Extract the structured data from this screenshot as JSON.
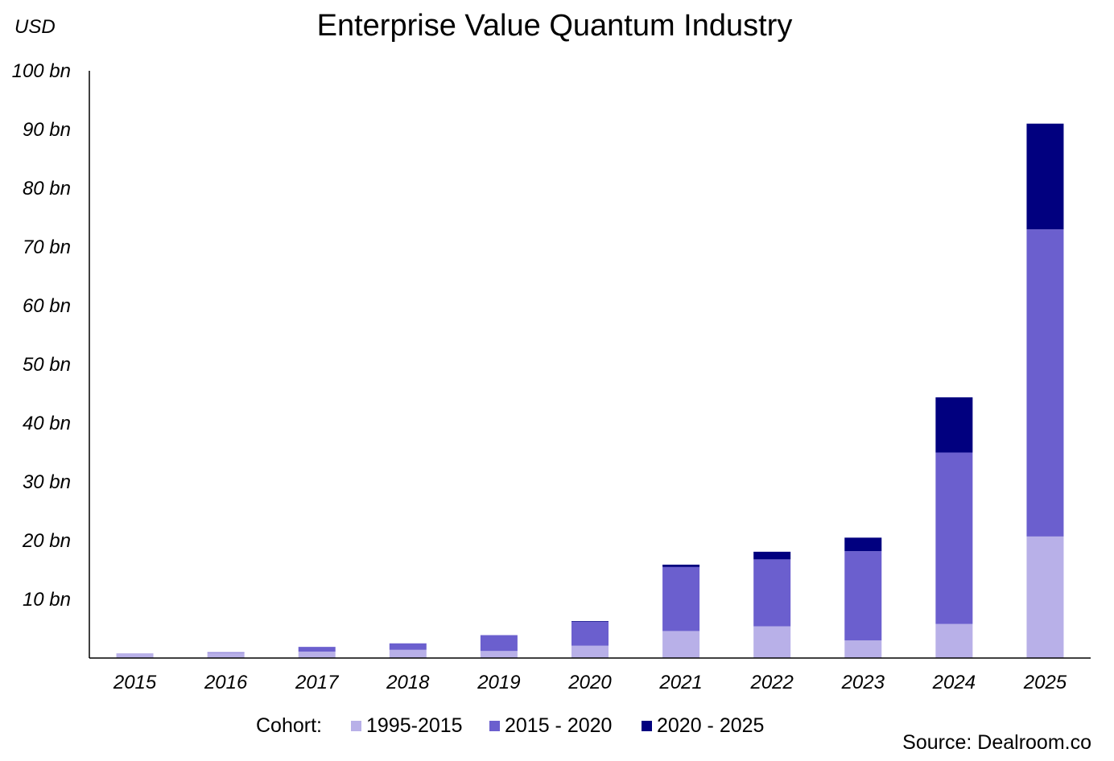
{
  "chart_data": {
    "type": "bar",
    "stacked": true,
    "title": "Enterprise Value Quantum Industry",
    "unit_label": "USD",
    "xlabel": "",
    "ylabel": "USD",
    "ylim": [
      0,
      100
    ],
    "yticks": [
      "100 bn",
      "90 bn",
      "80 bn",
      "70 bn",
      "60 bn",
      "50 bn",
      "40 bn",
      "30 bn",
      "20 bn",
      "10 bn"
    ],
    "ytick_values": [
      100,
      90,
      80,
      70,
      60,
      50,
      40,
      30,
      20,
      10
    ],
    "categories": [
      "2015",
      "2016",
      "2017",
      "2018",
      "2019",
      "2020",
      "2021",
      "2022",
      "2023",
      "2024",
      "2025"
    ],
    "legend_title": "Cohort:",
    "legend_position": "bottom",
    "series": [
      {
        "name": "1995-2015",
        "color": "#b8b0e8",
        "values": [
          0.8,
          0.9,
          1.1,
          1.4,
          1.2,
          2.1,
          4.6,
          5.4,
          3.0,
          5.8,
          20.7
        ]
      },
      {
        "name": "2015 - 2020",
        "color": "#6b5fce",
        "values": [
          0.0,
          0.1,
          0.8,
          1.1,
          2.7,
          4.1,
          10.9,
          11.4,
          15.2,
          29.2,
          52.3
        ]
      },
      {
        "name": "2020 - 2025",
        "color": "#01007f",
        "values": [
          0.0,
          0.0,
          0.0,
          0.0,
          0.0,
          0.1,
          0.4,
          1.3,
          2.3,
          9.4,
          18.0
        ]
      }
    ],
    "source": "Source: Dealroom.co"
  }
}
